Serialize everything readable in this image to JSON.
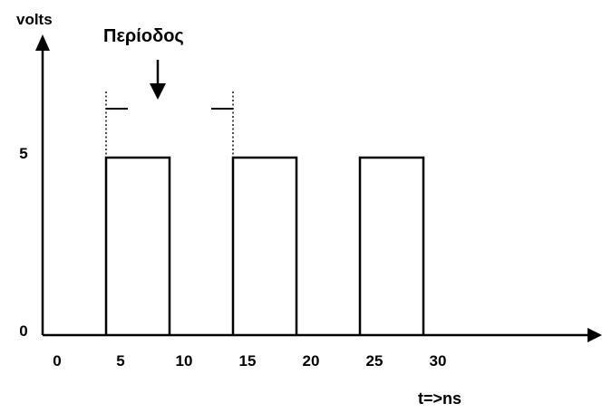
{
  "diagram": {
    "y_axis_label": "volts",
    "x_axis_label": "t=>ns",
    "period_label": "Περίοδος",
    "y_ticks": [
      {
        "value": 0,
        "label": "0"
      },
      {
        "value": 5,
        "label": "5"
      }
    ],
    "x_ticks": [
      {
        "value": 0,
        "label": "0"
      },
      {
        "value": 5,
        "label": "5"
      },
      {
        "value": 10,
        "label": "10"
      },
      {
        "value": 15,
        "label": "15"
      },
      {
        "value": 20,
        "label": "20"
      },
      {
        "value": 25,
        "label": "25"
      },
      {
        "value": 30,
        "label": "30"
      }
    ],
    "period_marker": {
      "from": 5,
      "to": 15
    },
    "colors": {
      "stroke": "#000000",
      "background": "#ffffff"
    }
  },
  "chart_data": {
    "type": "line",
    "step": true,
    "title": "",
    "xlabel": "t=>ns",
    "ylabel": "volts",
    "pulses": [
      {
        "start": 5,
        "end": 10,
        "level": 5
      },
      {
        "start": 15,
        "end": 20,
        "level": 5
      },
      {
        "start": 25,
        "end": 30,
        "level": 5
      }
    ],
    "low_level": 0,
    "grid": false
  }
}
